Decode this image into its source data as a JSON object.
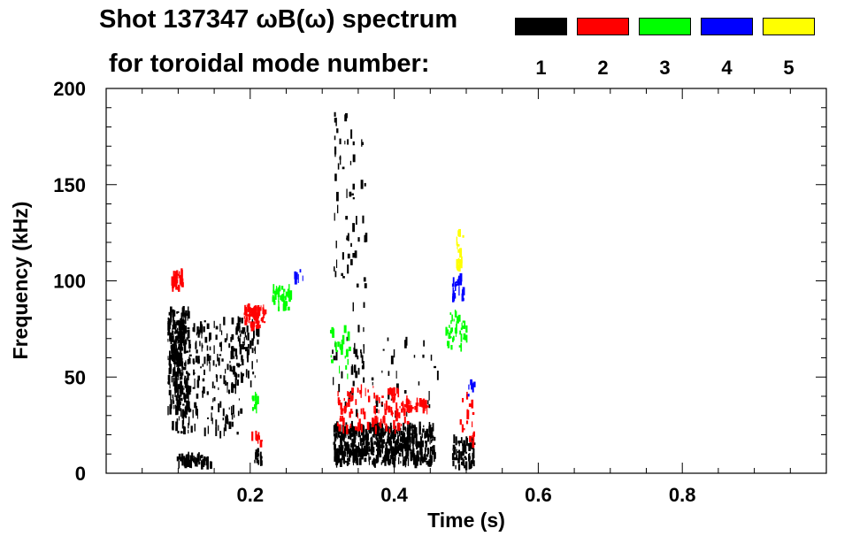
{
  "chart_data": {
    "type": "scatter",
    "title_line1": "Shot 137347 ωB(ω) spectrum",
    "title_line2": "for toroidal mode number:",
    "xlabel": "Time (s)",
    "ylabel": "Frequency (kHz)",
    "xlim": [
      0.0,
      1.0
    ],
    "ylim": [
      0,
      200
    ],
    "xticks": [
      0.2,
      0.4,
      0.6,
      0.8
    ],
    "xtick_labels": [
      "0.2",
      "0.4",
      "0.6",
      "0.8"
    ],
    "yticks": [
      0,
      50,
      100,
      150,
      200
    ],
    "ytick_labels": [
      "0",
      "50",
      "100",
      "150",
      "200"
    ],
    "legend": [
      {
        "label": "1",
        "color": "#000000"
      },
      {
        "label": "2",
        "color": "#ff0000"
      },
      {
        "label": "3",
        "color": "#00ff00"
      },
      {
        "label": "4",
        "color": "#0000ff"
      },
      {
        "label": "5",
        "color": "#ffff00"
      }
    ],
    "series": [
      {
        "name": "n=1",
        "color": "#000000",
        "clusters": [
          {
            "t": [
              0.085,
              0.115
            ],
            "f": [
              30,
              85
            ],
            "n": 260
          },
          {
            "t": [
              0.09,
              0.19
            ],
            "f": [
              20,
              80
            ],
            "n": 220
          },
          {
            "t": [
              0.17,
              0.21
            ],
            "f": [
              45,
              80
            ],
            "n": 70
          },
          {
            "t": [
              0.095,
              0.145
            ],
            "f": [
              4,
              9
            ],
            "n": 60
          },
          {
            "t": [
              0.205,
              0.215
            ],
            "f": [
              5,
              12
            ],
            "n": 15
          },
          {
            "t": [
              0.315,
              0.34
            ],
            "f": [
              100,
              196
            ],
            "n": 40
          },
          {
            "t": [
              0.34,
              0.36
            ],
            "f": [
              60,
              180
            ],
            "n": 30
          },
          {
            "t": [
              0.315,
              0.455
            ],
            "f": [
              5,
              25
            ],
            "n": 600
          },
          {
            "t": [
              0.31,
              0.46
            ],
            "f": [
              30,
              70
            ],
            "n": 60
          },
          {
            "t": [
              0.48,
              0.51
            ],
            "f": [
              3,
              18
            ],
            "n": 70
          }
        ]
      },
      {
        "name": "n=2",
        "color": "#ff0000",
        "clusters": [
          {
            "t": [
              0.09,
              0.105
            ],
            "f": [
              95,
              105
            ],
            "n": 40
          },
          {
            "t": [
              0.19,
              0.22
            ],
            "f": [
              76,
              86
            ],
            "n": 70
          },
          {
            "t": [
              0.2,
              0.215
            ],
            "f": [
              15,
              20
            ],
            "n": 10
          },
          {
            "t": [
              0.32,
              0.42
            ],
            "f": [
              22,
              45
            ],
            "n": 120
          },
          {
            "t": [
              0.415,
              0.445
            ],
            "f": [
              33,
              37
            ],
            "n": 30
          },
          {
            "t": [
              0.49,
              0.51
            ],
            "f": [
              15,
              45
            ],
            "n": 20
          }
        ]
      },
      {
        "name": "n=3",
        "color": "#00ff00",
        "clusters": [
          {
            "t": [
              0.23,
              0.255
            ],
            "f": [
              85,
              97
            ],
            "n": 40
          },
          {
            "t": [
              0.31,
              0.34
            ],
            "f": [
              50,
              75
            ],
            "n": 25
          },
          {
            "t": [
              0.47,
              0.5
            ],
            "f": [
              65,
              85
            ],
            "n": 40
          },
          {
            "t": [
              0.2,
              0.21
            ],
            "f": [
              33,
              40
            ],
            "n": 10
          }
        ]
      },
      {
        "name": "n=4",
        "color": "#0000ff",
        "clusters": [
          {
            "t": [
              0.48,
              0.495
            ],
            "f": [
              90,
              102
            ],
            "n": 25
          },
          {
            "t": [
              0.26,
              0.275
            ],
            "f": [
              100,
              106
            ],
            "n": 8
          },
          {
            "t": [
              0.5,
              0.51
            ],
            "f": [
              40,
              48
            ],
            "n": 6
          }
        ]
      },
      {
        "name": "n=5",
        "color": "#ffff00",
        "clusters": [
          {
            "t": [
              0.485,
              0.495
            ],
            "f": [
              105,
              125
            ],
            "n": 18
          }
        ]
      }
    ]
  }
}
